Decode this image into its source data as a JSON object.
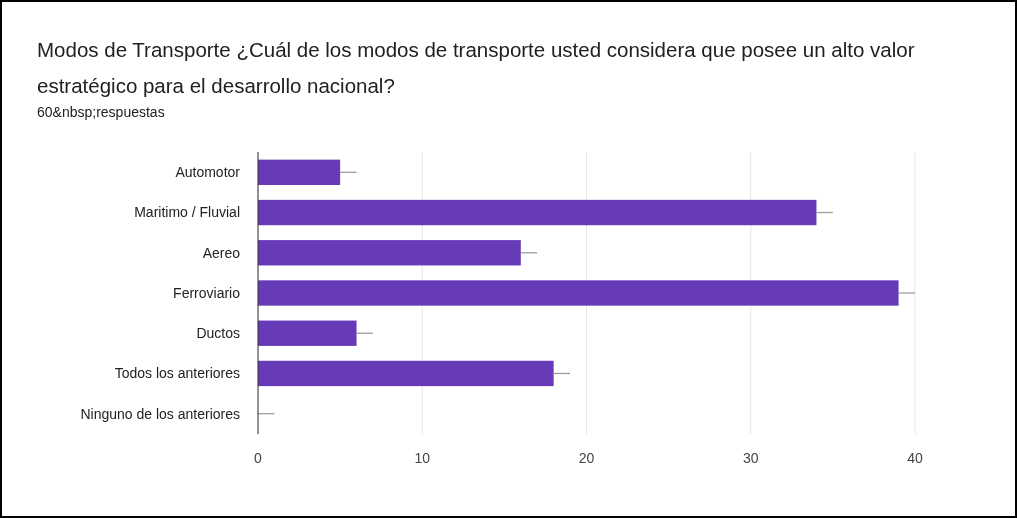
{
  "chart_data": {
    "type": "bar",
    "orientation": "horizontal",
    "title": "Modos de Transporte ¿Cuál de los modos de transporte usted considera que posee un alto valor estratégico para el desarrollo nacional?",
    "subtitle": "60&nbsp;respuestas",
    "categories": [
      "Automotor",
      "Maritimo / Fluvial",
      "Aereo",
      "Ferroviario",
      "Ductos",
      "Todos los anteriores",
      "Ninguno de los anteriores"
    ],
    "values": [
      5,
      34,
      16,
      39,
      6,
      18,
      0
    ],
    "errors": [
      [
        5,
        6
      ],
      [
        34,
        35
      ],
      [
        16,
        17
      ],
      [
        39,
        40
      ],
      [
        6,
        7
      ],
      [
        18,
        19
      ],
      [
        0,
        1
      ]
    ],
    "color": "#673ab7",
    "xlim": [
      0,
      40
    ],
    "xticks": [
      0,
      10,
      20,
      30,
      40
    ],
    "grid": "x"
  }
}
